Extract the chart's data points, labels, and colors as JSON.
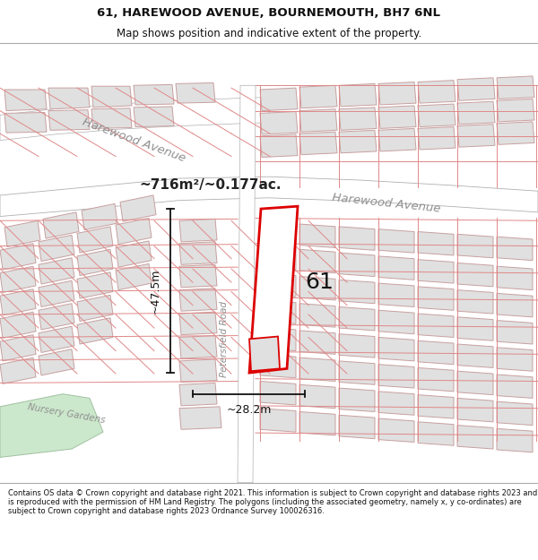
{
  "title": "61, HAREWOOD AVENUE, BOURNEMOUTH, BH7 6NL",
  "subtitle": "Map shows position and indicative extent of the property.",
  "footer": "Contains OS data © Crown copyright and database right 2021. This information is subject to Crown copyright and database rights 2023 and is reproduced with the permission of HM Land Registry. The polygons (including the associated geometry, namely x, y co-ordinates) are subject to Crown copyright and database rights 2023 Ordnance Survey 100026316.",
  "map_bg": "#f2f2f2",
  "title_fontsize": 9.5,
  "subtitle_fontsize": 8.5,
  "footer_fontsize": 6.0,
  "road_fill": "#ffffff",
  "road_edge": "#b0b0b0",
  "block_fill": "#e0e0e0",
  "block_edge": "#c8a0a0",
  "prop_fill": "#ffffff",
  "prop_edge": "#dd0000",
  "green_fill": "#cce8cc",
  "green_edge": "#a0c0a0",
  "dim_color": "#111111",
  "label_color": "#111111",
  "street_color": "#909090",
  "area_text": "~716m²/~0.177ac.",
  "label_61": "61",
  "dim_h_text": "~47.5m",
  "dim_w_text": "~28.2m",
  "title_bg": "#ffffff",
  "footer_bg": "#ffffff"
}
